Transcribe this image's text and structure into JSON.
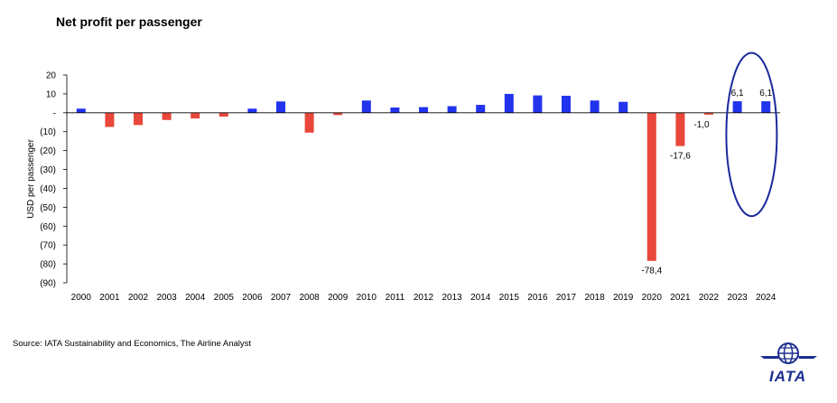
{
  "title": "Net profit per passenger",
  "source": "Source: IATA Sustainability and Economics, The Airline Analyst",
  "logo_text": "IATA",
  "colors": {
    "positive": "#2233ee",
    "negative": "#e8473a",
    "highlight": "#1a2a9c",
    "axis": "#000000"
  },
  "chart_data": {
    "type": "bar",
    "title": "Net profit per passenger",
    "xlabel": "",
    "ylabel": "USD per passenger",
    "ylim": [
      -90,
      20
    ],
    "yticks": [
      20,
      10,
      0,
      -10,
      -20,
      -30,
      -40,
      -50,
      -60,
      -70,
      -80,
      -90
    ],
    "ytick_labels": [
      "20",
      "10",
      "-",
      "(10)",
      "(20)",
      "(30)",
      "(40)",
      "(50)",
      "(60)",
      "(70)",
      "(80)",
      "(90)"
    ],
    "categories": [
      "2000",
      "2001",
      "2002",
      "2003",
      "2004",
      "2005",
      "2006",
      "2007",
      "2008",
      "2009",
      "2010",
      "2011",
      "2012",
      "2013",
      "2014",
      "2015",
      "2016",
      "2017",
      "2018",
      "2019",
      "2020",
      "2021",
      "2022",
      "2023",
      "2024"
    ],
    "values": [
      2.2,
      -7.5,
      -6.5,
      -3.8,
      -3.0,
      -2.0,
      2.2,
      6.0,
      -10.5,
      -1.2,
      6.5,
      2.8,
      3.0,
      3.5,
      4.2,
      10.0,
      9.2,
      9.0,
      6.5,
      5.8,
      -78.4,
      -17.6,
      -1.0,
      6.1,
      6.1
    ],
    "data_labels": [
      {
        "category": "2020",
        "text": "-78,4"
      },
      {
        "category": "2021",
        "text": "-17,6"
      },
      {
        "category": "2022",
        "text": "-1,0"
      },
      {
        "category": "2023",
        "text": "6,1"
      },
      {
        "category": "2024",
        "text": "6,1"
      }
    ],
    "highlight_categories": [
      "2023",
      "2024"
    ],
    "grid": false,
    "legend": "none"
  }
}
